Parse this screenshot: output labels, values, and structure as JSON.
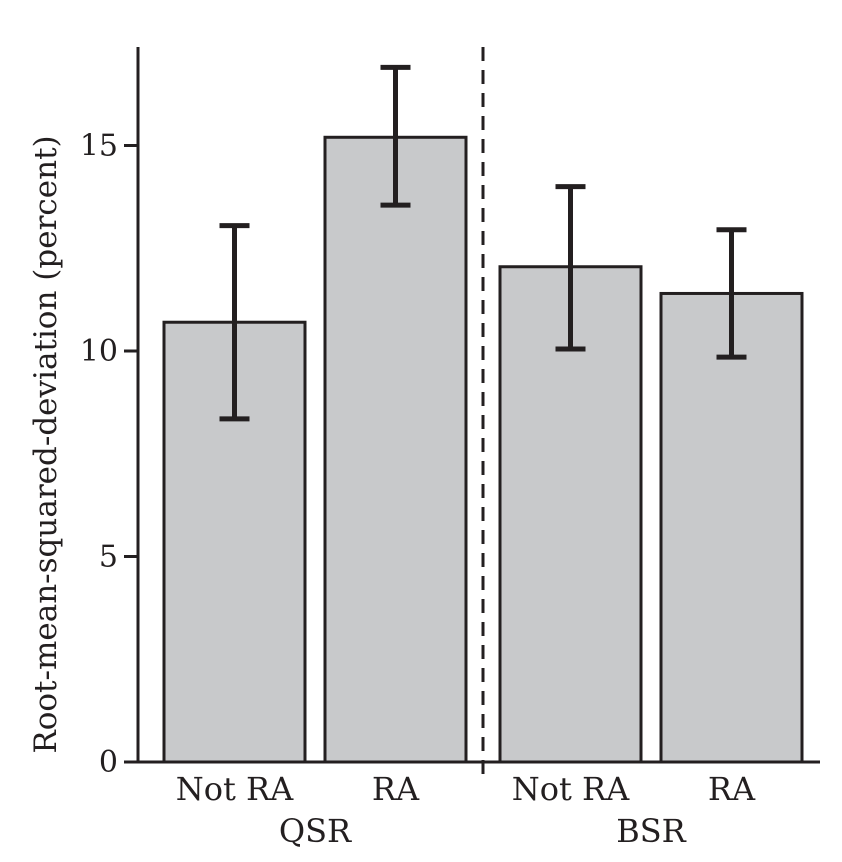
{
  "chart_data": {
    "type": "bar",
    "title": "",
    "xlabel": "",
    "ylabel": "Root-mean-squared-deviation (percent)",
    "ylim": [
      0,
      17.5
    ],
    "yticks": [
      0,
      5,
      10,
      15
    ],
    "grid": false,
    "groups": [
      {
        "name": "QSR",
        "bars": [
          {
            "label": "Not RA",
            "value": 10.7,
            "err_low": 8.35,
            "err_high": 13.05
          },
          {
            "label": "RA",
            "value": 15.2,
            "err_low": 13.55,
            "err_high": 16.9
          }
        ]
      },
      {
        "name": "BSR",
        "bars": [
          {
            "label": "Not RA",
            "value": 12.05,
            "err_low": 10.05,
            "err_high": 14.0
          },
          {
            "label": "RA",
            "value": 11.4,
            "err_low": 9.85,
            "err_high": 12.95
          }
        ]
      }
    ],
    "colors": {
      "bar_fill": "#c8c9cb",
      "bar_stroke": "#231f20",
      "axis": "#231f20"
    }
  }
}
